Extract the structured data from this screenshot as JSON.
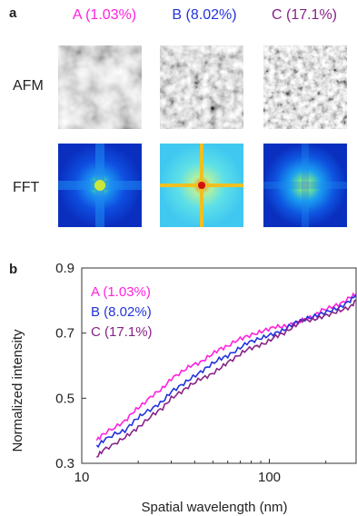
{
  "figure": {
    "panel_a_letter": "a",
    "panel_b_letter": "b",
    "samples": [
      {
        "label": "A (1.03%)",
        "color": "#ff22dd"
      },
      {
        "label": "B (8.02%)",
        "color": "#2233dd"
      },
      {
        "label": "C (17.1%)",
        "color": "#882288"
      }
    ],
    "row_labels": {
      "afm": "AFM",
      "fft": "FFT"
    }
  },
  "chart_data": {
    "type": "line",
    "xlabel": "Spatial wavelength (nm)",
    "ylabel": "Normalized intensity",
    "xscale": "log",
    "xlim": [
      10,
      290
    ],
    "ylim": [
      0.3,
      0.9
    ],
    "xticks": [
      10,
      100
    ],
    "yticks": [
      0.3,
      0.5,
      0.7,
      0.9
    ],
    "legend_position": "top-left",
    "series": [
      {
        "name": "A (1.03%)",
        "color": "#ff22dd",
        "x": [
          12,
          13,
          15,
          17,
          19,
          21,
          24,
          27,
          30,
          34,
          38,
          43,
          48,
          54,
          60,
          68,
          76,
          86,
          96,
          108,
          120,
          135,
          150,
          170,
          190,
          215,
          240,
          270,
          290
        ],
        "y": [
          0.37,
          0.39,
          0.41,
          0.43,
          0.46,
          0.48,
          0.51,
          0.53,
          0.56,
          0.58,
          0.6,
          0.61,
          0.63,
          0.65,
          0.66,
          0.68,
          0.69,
          0.7,
          0.71,
          0.72,
          0.72,
          0.73,
          0.74,
          0.75,
          0.77,
          0.78,
          0.79,
          0.81,
          0.82
        ]
      },
      {
        "name": "B (8.02%)",
        "color": "#2233dd",
        "x": [
          12,
          13,
          15,
          17,
          19,
          21,
          24,
          27,
          30,
          34,
          38,
          43,
          48,
          54,
          60,
          68,
          76,
          86,
          96,
          108,
          120,
          135,
          150,
          170,
          190,
          215,
          240,
          270,
          290
        ],
        "y": [
          0.35,
          0.37,
          0.39,
          0.4,
          0.43,
          0.45,
          0.47,
          0.49,
          0.52,
          0.54,
          0.56,
          0.58,
          0.6,
          0.62,
          0.63,
          0.65,
          0.67,
          0.68,
          0.69,
          0.7,
          0.71,
          0.73,
          0.74,
          0.75,
          0.76,
          0.77,
          0.78,
          0.8,
          0.82
        ]
      },
      {
        "name": "C (17.1%)",
        "color": "#882288",
        "x": [
          12,
          13,
          15,
          17,
          19,
          21,
          24,
          27,
          30,
          34,
          38,
          43,
          48,
          54,
          60,
          68,
          76,
          86,
          96,
          108,
          120,
          135,
          150,
          170,
          190,
          215,
          240,
          270,
          290
        ],
        "y": [
          0.32,
          0.34,
          0.36,
          0.38,
          0.4,
          0.42,
          0.45,
          0.47,
          0.5,
          0.52,
          0.54,
          0.56,
          0.57,
          0.59,
          0.61,
          0.63,
          0.65,
          0.66,
          0.67,
          0.69,
          0.7,
          0.72,
          0.74,
          0.74,
          0.75,
          0.76,
          0.77,
          0.78,
          0.8
        ]
      }
    ]
  }
}
